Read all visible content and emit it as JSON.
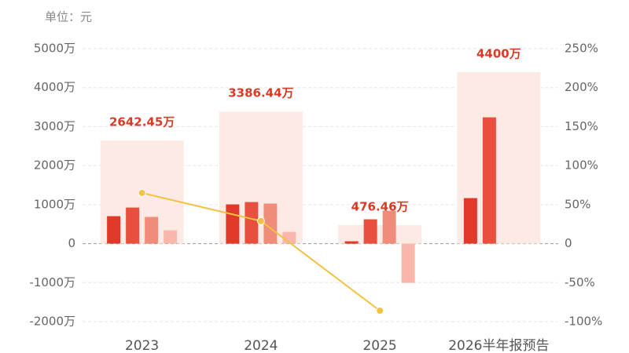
{
  "chart_data": {
    "type": "bar",
    "unit_label": "单位：元",
    "categories": [
      "2023",
      "2024",
      "2025",
      "2026半年报预告"
    ],
    "totals": {
      "color": "#fdeae5",
      "label_color": "#d93a26",
      "values": [
        2642.45,
        3386.44,
        476.46,
        4400
      ],
      "value_labels": [
        "2642.45万",
        "3386.44万",
        "476.46万",
        "4400万"
      ]
    },
    "series": [
      {
        "type": "bar",
        "color": "#e0392a",
        "values": [
          704,
          1006,
          60,
          1167
        ]
      },
      {
        "type": "bar",
        "color": "#e8503d",
        "values": [
          925,
          1066,
          624,
          3239
        ]
      },
      {
        "type": "bar",
        "color": "#f08c7a",
        "values": [
          684,
          1026,
          845,
          null
        ]
      },
      {
        "type": "bar",
        "color": "#f8b7aa",
        "values": [
          342,
          302,
          -1006,
          null
        ]
      },
      {
        "type": "line",
        "axis": "y2",
        "color": "#f3c143",
        "values": [
          65,
          29,
          -86,
          null
        ]
      }
    ],
    "ylim": [
      -2000,
      5000
    ],
    "yticks": [
      {
        "value": -2000,
        "label": "-2000万"
      },
      {
        "value": -1000,
        "label": "-1000万"
      },
      0,
      {
        "value": 1000,
        "label": "1000万"
      },
      {
        "value": 2000,
        "label": "2000万"
      },
      {
        "value": 3000,
        "label": "3000万"
      },
      {
        "value": 4000,
        "label": "4000万"
      },
      {
        "value": 5000,
        "label": "5000万"
      }
    ],
    "y2lim": [
      -100,
      250
    ],
    "y2ticks": [
      {
        "value": -100,
        "label": "-100%"
      },
      {
        "value": -50,
        "label": "-50%"
      },
      0,
      {
        "value": 50,
        "label": "50%"
      },
      {
        "value": 100,
        "label": "100%"
      },
      {
        "value": 150,
        "label": "150%"
      },
      {
        "value": 200,
        "label": "200%"
      },
      {
        "value": 250,
        "label": "250%"
      }
    ],
    "grid": true
  }
}
